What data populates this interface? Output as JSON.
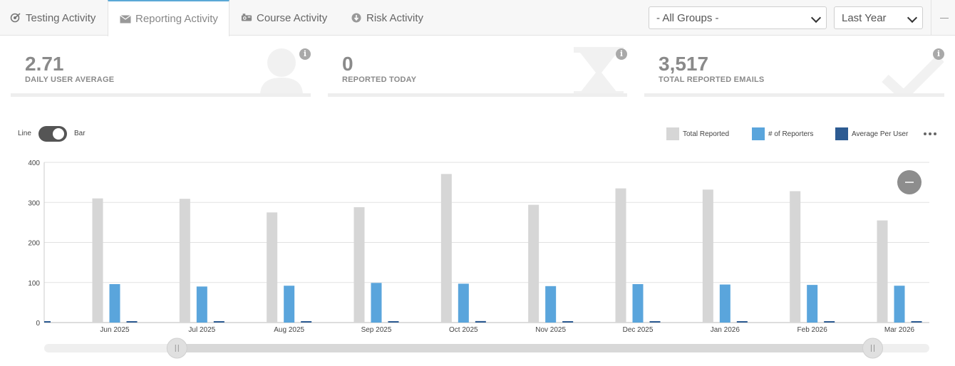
{
  "tabs": [
    {
      "label": "Testing Activity",
      "icon": "target-icon",
      "active": false
    },
    {
      "label": "Reporting Activity",
      "icon": "envelope-icon",
      "active": true
    },
    {
      "label": "Course Activity",
      "icon": "projector-icon",
      "active": false
    },
    {
      "label": "Risk Activity",
      "icon": "download-circle-icon",
      "active": false
    }
  ],
  "filters": {
    "group": "- All Groups -",
    "period": "Last Year"
  },
  "stats": [
    {
      "value": "2.71",
      "label": "DAILY USER AVERAGE",
      "icon": "user-icon"
    },
    {
      "value": "0",
      "label": "REPORTED TODAY",
      "icon": "hourglass-icon"
    },
    {
      "value": "3,517",
      "label": "TOTAL REPORTED EMAILS",
      "icon": "check-icon"
    }
  ],
  "info_glyph": "i",
  "toggle": {
    "left": "Line",
    "right": "Bar",
    "state": "Bar"
  },
  "legend": [
    {
      "name": "Total Reported",
      "color": "#d6d6d6"
    },
    {
      "name": "# of Reporters",
      "color": "#5aa5dc"
    },
    {
      "name": "Average Per User",
      "color": "#2d5b92"
    }
  ],
  "chart_data": {
    "type": "bar",
    "ylim": [
      0,
      400
    ],
    "yticks": [
      0,
      100,
      200,
      300,
      400
    ],
    "categories": [
      "Jun 2025",
      "Jul 2025",
      "Aug 2025",
      "Sep 2025",
      "Oct 2025",
      "Nov 2025",
      "Dec 2025",
      "Jan 2026",
      "Feb 2026",
      "Mar 2026"
    ],
    "series": [
      {
        "name": "Total Reported",
        "color": "#d6d6d6",
        "values": [
          310,
          309,
          275,
          288,
          371,
          294,
          335,
          332,
          328,
          255
        ]
      },
      {
        "name": "# of Reporters",
        "color": "#5aa5dc",
        "values": [
          96,
          90,
          92,
          99,
          97,
          91,
          96,
          95,
          94,
          92
        ]
      },
      {
        "name": "Average Per User",
        "color": "#2d5b92",
        "values": [
          3.2,
          3.4,
          3.0,
          2.9,
          3.8,
          3.2,
          3.5,
          3.5,
          3.5,
          2.8
        ]
      }
    ],
    "partial_start_value": 3.0,
    "grid": true,
    "legend_position": "top-right"
  },
  "zoom_reset_icon": "minus-circle-icon",
  "range_slider": {
    "start": 0.15,
    "end": 0.936
  }
}
